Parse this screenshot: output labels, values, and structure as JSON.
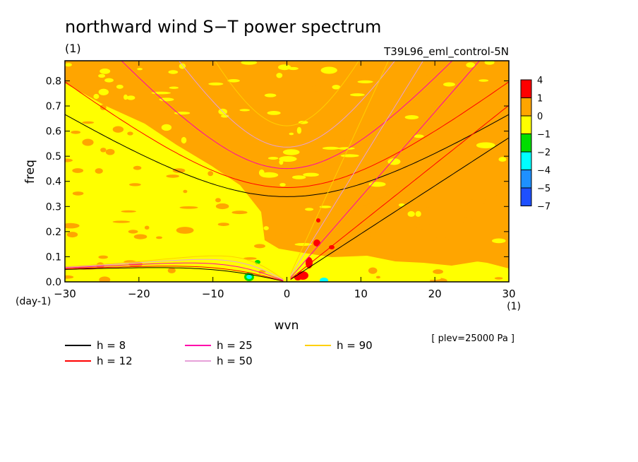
{
  "chart_data": {
    "type": "heatmap",
    "title": "northward wind S−T power spectrum",
    "subtitle_units": "(1)",
    "run_label": "T39L96_eml_control-5N",
    "xlabel": "wvn",
    "ylabel": "freq",
    "x_units": "(1)",
    "y_units": "(day-1)",
    "xlim": [
      -30,
      30
    ],
    "ylim": [
      0.0,
      0.88
    ],
    "xticks": [
      -30,
      -20,
      -10,
      0,
      10,
      20,
      30
    ],
    "xtick_labels": [
      "−30",
      "−20",
      "−10",
      "0",
      "10",
      "20",
      "30"
    ],
    "yticks": [
      0.0,
      0.1,
      0.2,
      0.3,
      0.4,
      0.5,
      0.6,
      0.7,
      0.8
    ],
    "ytick_labels": [
      "0.0",
      "0.1",
      "0.2",
      "0.3",
      "0.4",
      "0.5",
      "0.6",
      "0.7",
      "0.8"
    ],
    "plev_note": "[ plev=25000 Pa ]",
    "colorbar": {
      "labels": [
        "4",
        "1",
        "0",
        "−1",
        "−2",
        "−4",
        "−5",
        "−7"
      ],
      "colors": [
        "#ff0000",
        "#ffa500",
        "#ffff00",
        "#00dd00",
        "#00ffff",
        "#1e90ff",
        "#1e50ff"
      ]
    },
    "dispersion_curves": [
      {
        "name": "h =  8",
        "color": "#000000"
      },
      {
        "name": "h = 12",
        "color": "#ff0000"
      },
      {
        "name": "h = 25",
        "color": "#ff00aa"
      },
      {
        "name": "h = 50",
        "color": "#e6a0d8"
      },
      {
        "name": "h = 90",
        "color": "#ffd000"
      }
    ]
  }
}
